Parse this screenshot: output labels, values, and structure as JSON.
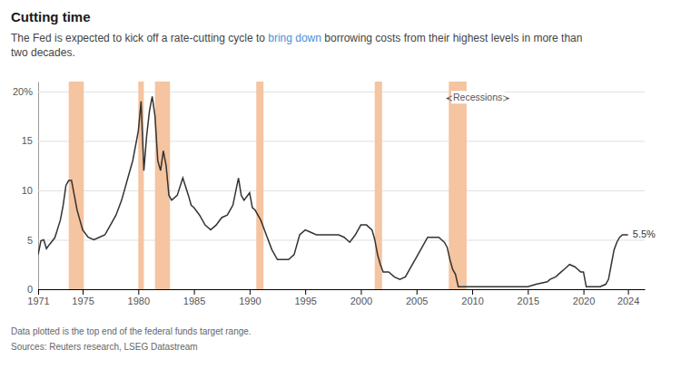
{
  "chart_data": {
    "type": "line",
    "title": "Cutting time",
    "subtitle": [
      [
        {
          "text": "The Fed is expected to kick off a rate-cutting cycle to "
        },
        {
          "text": "bring down",
          "color": "#4a90d9"
        },
        {
          "text": " borrowing costs from their highest levels in more than"
        }
      ],
      [
        {
          "text": "two decades."
        }
      ]
    ],
    "footnotes": [
      "Data plotted is the top end of the federal funds target range.",
      "Sources: Reuters research, LSEG Datastream"
    ],
    "color": "#333333",
    "x": [
      1971.0,
      1971.25,
      1971.5,
      1971.75,
      1972.0,
      1972.5,
      1973.0,
      1973.25,
      1973.5,
      1973.75,
      1974.0,
      1974.25,
      1974.5,
      1974.75,
      1975.0,
      1975.5,
      1976.0,
      1976.5,
      1977.0,
      1977.5,
      1978.0,
      1978.5,
      1979.0,
      1979.5,
      1980.0,
      1980.25,
      1980.5,
      1980.75,
      1981.0,
      1981.25,
      1981.5,
      1981.75,
      1982.0,
      1982.25,
      1982.5,
      1982.75,
      1983.0,
      1983.5,
      1984.0,
      1984.5,
      1984.75,
      1985.0,
      1985.5,
      1986.0,
      1986.5,
      1987.0,
      1987.5,
      1988.0,
      1988.5,
      1989.0,
      1989.25,
      1989.5,
      1990.0,
      1990.25,
      1990.5,
      1991.0,
      1991.5,
      1992.0,
      1992.5,
      1993.0,
      1993.5,
      1994.0,
      1994.5,
      1995.0,
      1995.5,
      1996.0,
      1996.5,
      1997.0,
      1997.5,
      1998.0,
      1998.5,
      1999.0,
      1999.5,
      2000.0,
      2000.5,
      2001.0,
      2001.25,
      2001.5,
      2001.75,
      2002.0,
      2002.5,
      2003.0,
      2003.5,
      2004.0,
      2004.5,
      2005.0,
      2005.5,
      2006.0,
      2006.5,
      2007.0,
      2007.5,
      2007.75,
      2008.0,
      2008.25,
      2008.5,
      2008.75,
      2009.0,
      2010.0,
      2011.0,
      2012.0,
      2013.0,
      2014.0,
      2015.0,
      2015.75,
      2016.75,
      2017.0,
      2017.5,
      2017.75,
      2018.0,
      2018.25,
      2018.5,
      2018.75,
      2019.25,
      2019.5,
      2019.75,
      2020.0,
      2020.25,
      2020.5,
      2021.0,
      2021.5,
      2022.0,
      2022.25,
      2022.5,
      2022.75,
      2023.0,
      2023.25,
      2023.5,
      2024.0
    ],
    "values": [
      3.5,
      4.9,
      5.0,
      4.1,
      4.5,
      5.2,
      7.0,
      8.5,
      10.5,
      11.0,
      11.0,
      9.5,
      8.0,
      7.0,
      6.0,
      5.25,
      5.0,
      5.25,
      5.5,
      6.5,
      7.5,
      9.0,
      11.0,
      13.0,
      16.0,
      19.0,
      12.0,
      15.5,
      18.0,
      19.5,
      17.5,
      13.0,
      12.0,
      14.0,
      12.5,
      9.5,
      9.0,
      9.5,
      11.25,
      9.5,
      8.5,
      8.25,
      7.5,
      6.5,
      6.0,
      6.5,
      7.25,
      7.5,
      8.5,
      11.25,
      9.5,
      9.0,
      9.75,
      8.25,
      8.0,
      7.0,
      5.5,
      4.0,
      3.0,
      3.0,
      3.0,
      3.5,
      5.5,
      6.0,
      5.75,
      5.5,
      5.5,
      5.5,
      5.5,
      5.5,
      5.25,
      4.75,
      5.5,
      6.5,
      6.5,
      6.0,
      5.0,
      3.5,
      2.5,
      1.75,
      1.75,
      1.25,
      1.0,
      1.25,
      2.25,
      3.25,
      4.25,
      5.25,
      5.25,
      5.25,
      4.75,
      4.25,
      3.0,
      2.0,
      1.5,
      0.25,
      0.25,
      0.25,
      0.25,
      0.25,
      0.25,
      0.25,
      0.25,
      0.5,
      0.75,
      1.0,
      1.25,
      1.5,
      1.75,
      2.0,
      2.25,
      2.5,
      2.25,
      2.0,
      1.75,
      1.75,
      0.25,
      0.25,
      0.25,
      0.25,
      0.5,
      1.0,
      2.5,
      4.0,
      4.75,
      5.25,
      5.5,
      5.5
    ],
    "recessions": {
      "label": "Recessions",
      "color": "#f5c4a0",
      "ranges": [
        [
          1973.75,
          1975.1
        ],
        [
          1980.0,
          1980.5
        ],
        [
          1981.5,
          1982.85
        ],
        [
          1990.6,
          1991.25
        ],
        [
          2001.25,
          2001.9
        ],
        [
          2007.9,
          2009.5
        ]
      ],
      "label_x": 2010.5,
      "label_y": 19.3,
      "arrows": [
        2007.7,
        2013.3
      ]
    },
    "annotations": [
      {
        "text": "5.5%",
        "x": 2024.1,
        "y": 5.5
      }
    ],
    "xlim": [
      1971,
      2025.5
    ],
    "xticks": [
      1971,
      1975,
      1980,
      1985,
      1990,
      1995,
      2000,
      2005,
      2010,
      2015,
      2020,
      2024
    ],
    "ylim": [
      0,
      21
    ],
    "yticks": [
      0,
      5,
      10,
      15,
      {
        "value": 20,
        "label": "20%"
      }
    ],
    "grid": true
  }
}
